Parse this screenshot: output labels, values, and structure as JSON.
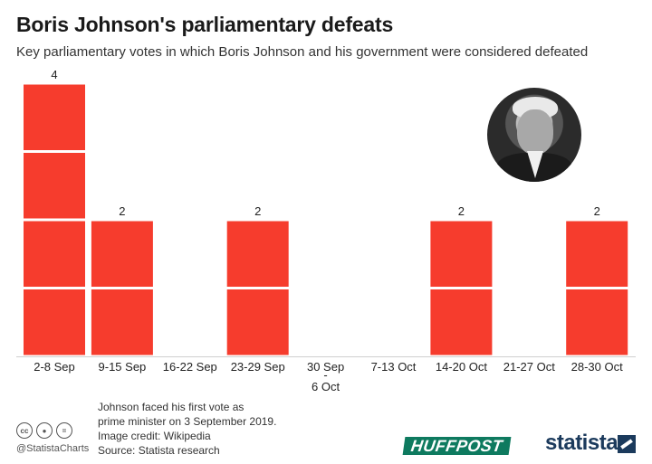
{
  "title": "Boris Johnson's parliamentary defeats",
  "subtitle": "Key parliamentary votes in which Boris Johnson and his government were considered defeated",
  "chart_data": {
    "type": "bar",
    "categories": [
      "2-8 Sep",
      "9-15 Sep",
      "16-22 Sep",
      "23-29 Sep",
      "30 Sep - 6 Oct",
      "7-13 Oct",
      "14-20 Oct",
      "21-27 Oct",
      "28-30 Oct"
    ],
    "category_lines": [
      [
        "2-8 Sep"
      ],
      [
        "9-15 Sep"
      ],
      [
        "16-22 Sep"
      ],
      [
        "23-29 Sep"
      ],
      [
        "30 Sep",
        "-",
        "6 Oct"
      ],
      [
        "7-13 Oct"
      ],
      [
        "14-20 Oct"
      ],
      [
        "21-27 Oct"
      ],
      [
        "28-30 Oct"
      ]
    ],
    "values": [
      4,
      2,
      0,
      2,
      0,
      0,
      2,
      0,
      2
    ],
    "unit_blocks": true,
    "bar_color": "#f63c2d",
    "grid": false,
    "legend": "none"
  },
  "footnote": {
    "line1": "Johnson faced his first vote as",
    "line2": "prime minister on 3 September 2019.",
    "credit": "Image credit: Wikipedia",
    "source": "Source: Statista research"
  },
  "branding": {
    "handle": "@StatistaCharts",
    "partner": "HUFFPOST",
    "statista": "statista",
    "cc_icons": [
      "cc-icon",
      "attribution-icon",
      "no-derivatives-icon"
    ]
  },
  "colors": {
    "bar": "#f63c2d",
    "huffpost": "#0e7a5f",
    "statista": "#1b3a5c"
  }
}
